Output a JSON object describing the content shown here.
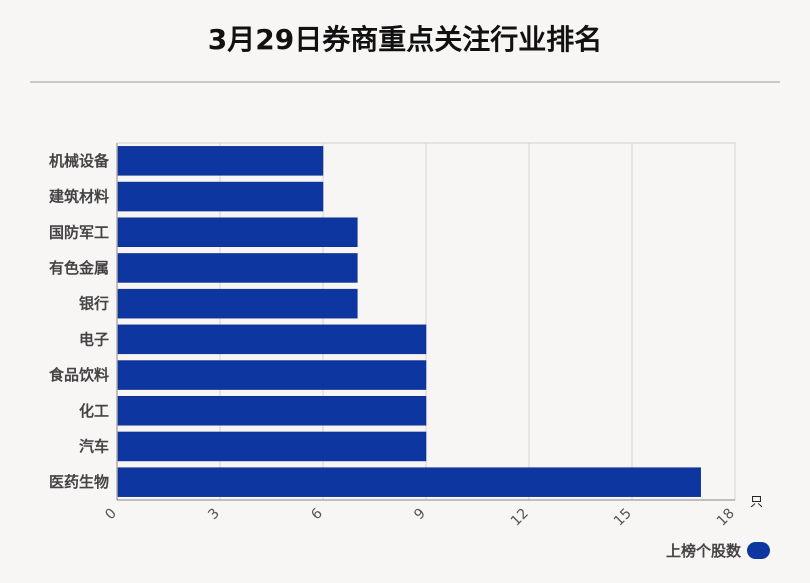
{
  "title": "3月29日券商重点关注行业排名",
  "chart_data": {
    "type": "bar",
    "orientation": "horizontal",
    "categories": [
      "机械设备",
      "建筑材料",
      "国防军工",
      "有色金属",
      "银行",
      "电子",
      "食品饮料",
      "化工",
      "汽车",
      "医药生物"
    ],
    "series": [
      {
        "name": "上榜个股数",
        "values": [
          6,
          6,
          7,
          7,
          7,
          9,
          9,
          9,
          9,
          17
        ]
      }
    ],
    "xlim": [
      0,
      18
    ],
    "xticks": [
      "0",
      "3",
      "6",
      "9",
      "12",
      "15",
      "18"
    ],
    "xunit": "只",
    "grid": true,
    "legend_position": "bottom-right",
    "bar_color": "#0d36a1"
  }
}
